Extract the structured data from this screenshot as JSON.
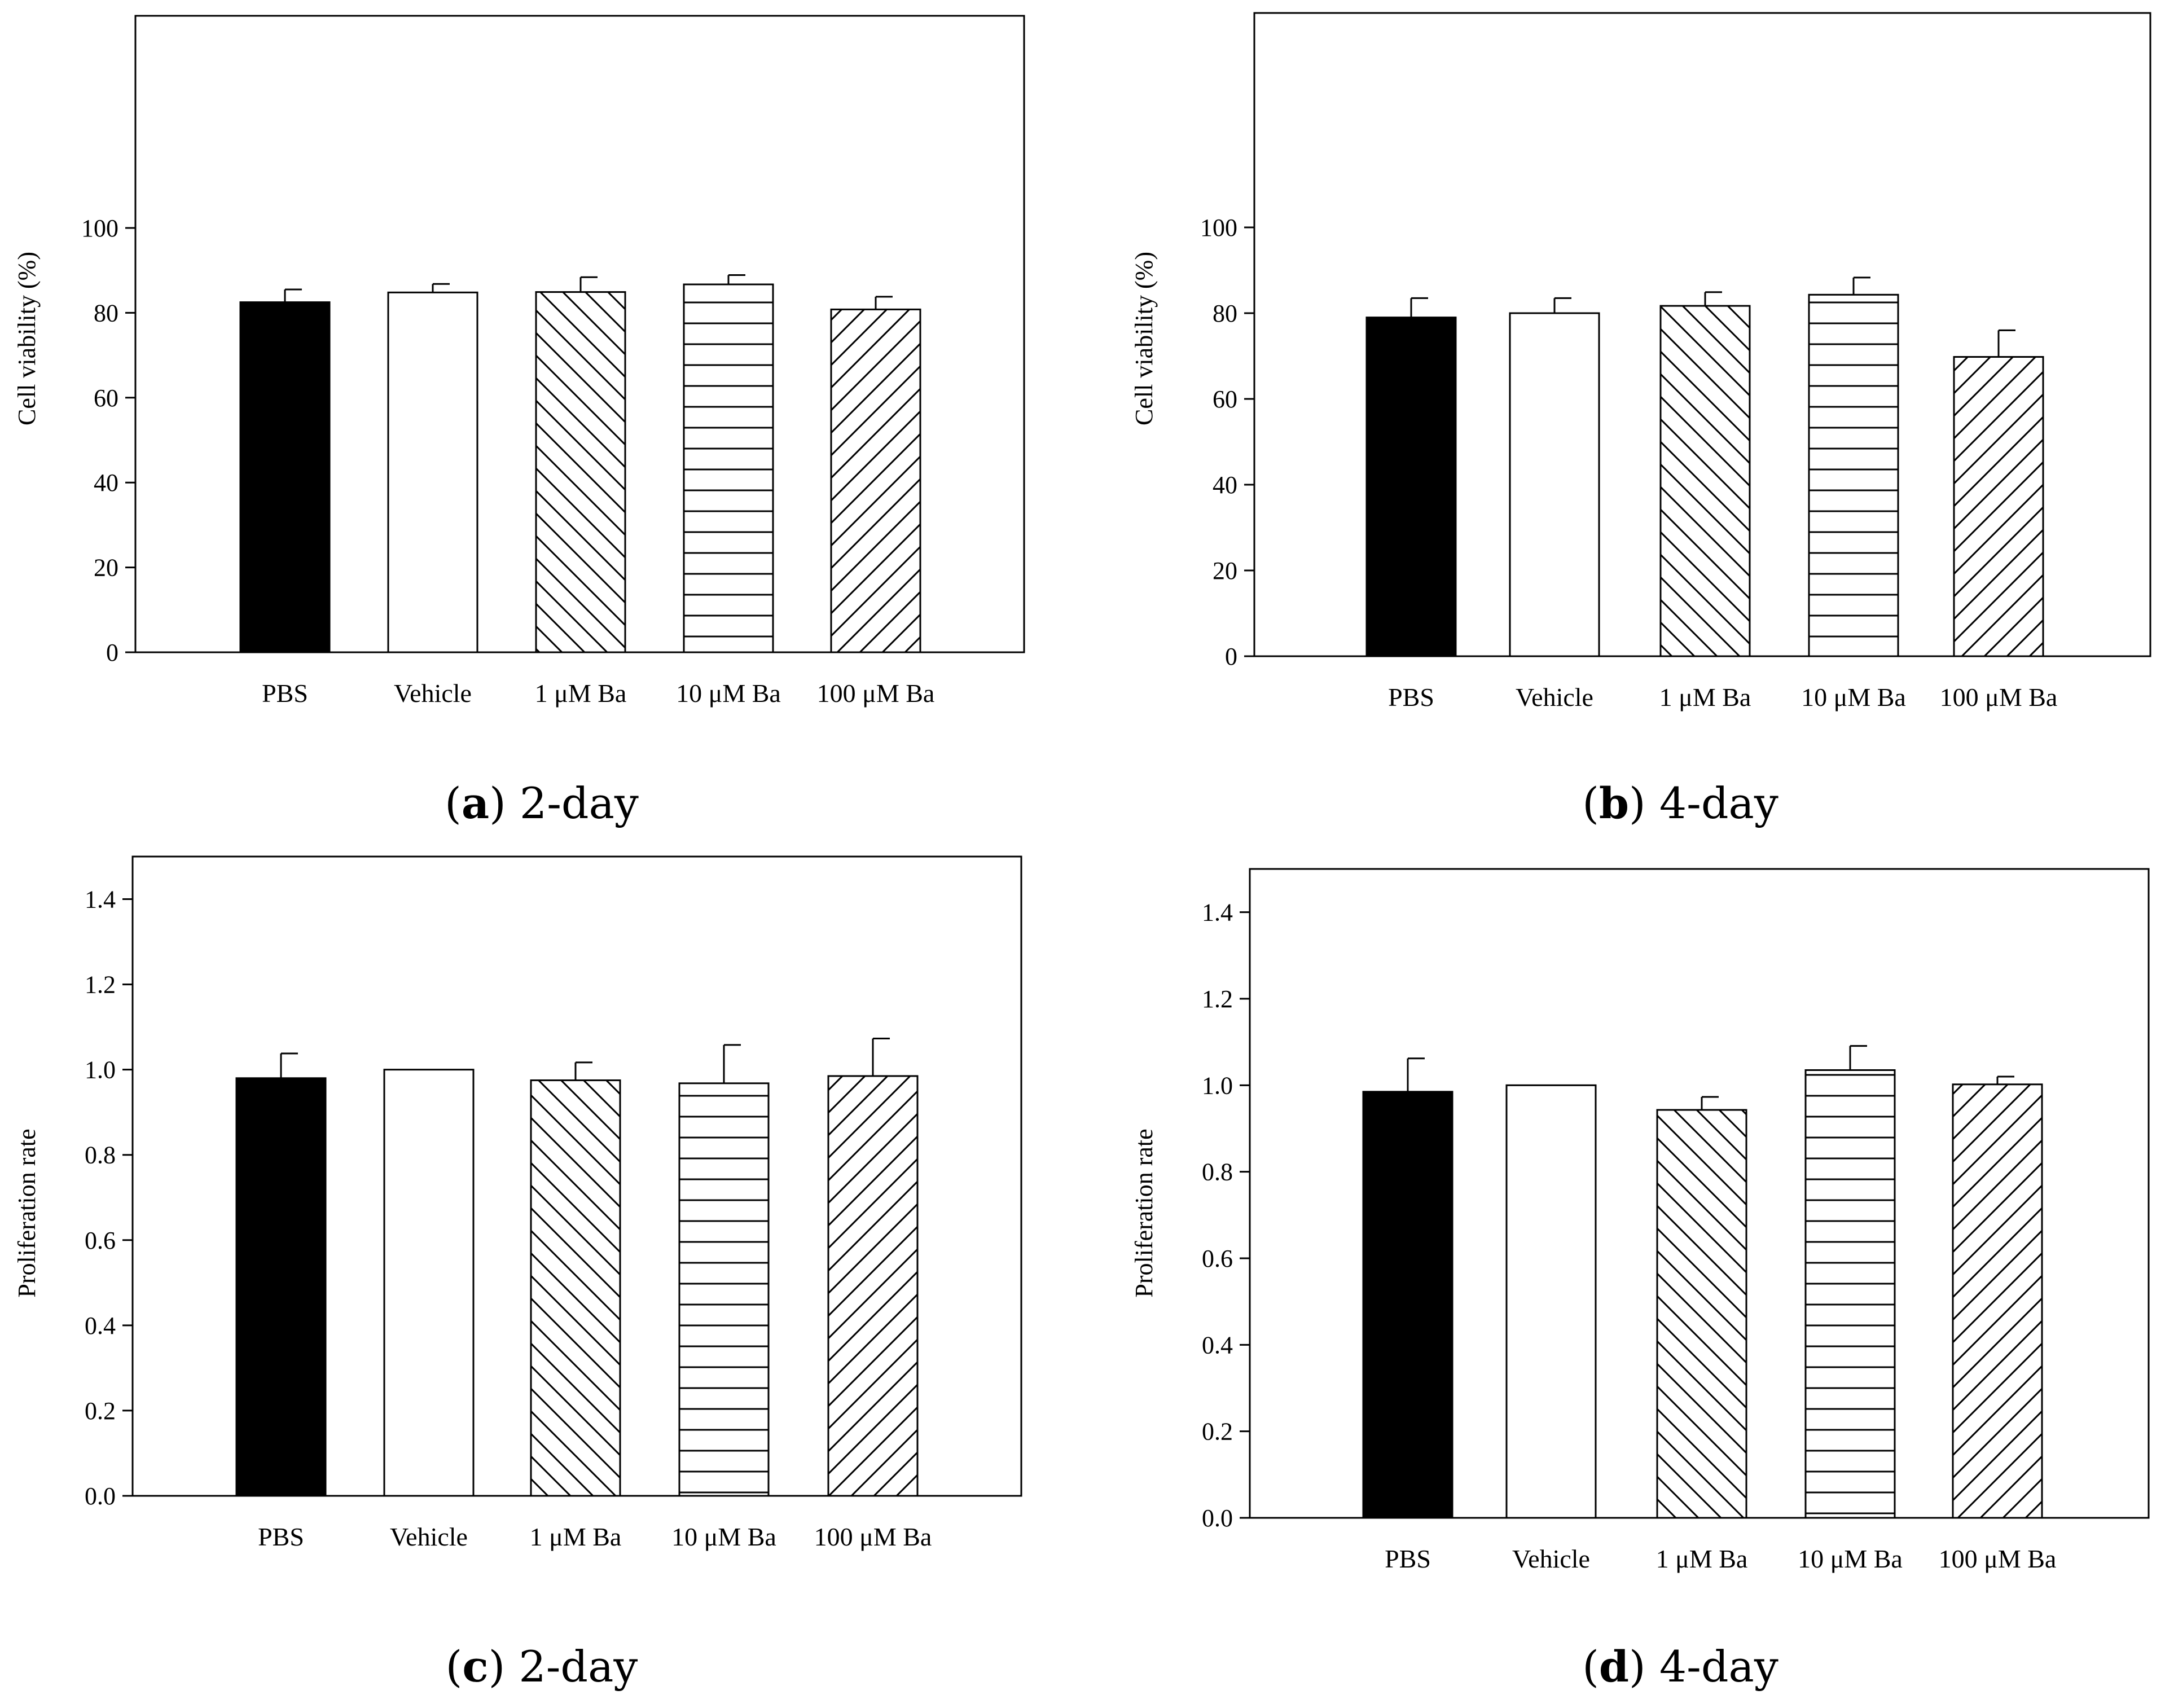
{
  "figure": {
    "panels": [
      {
        "caption": {
          "open": "(",
          "letter": "a",
          "close": ") 2-day"
        },
        "chart_data": {
          "type": "bar",
          "title": "",
          "xlabel": "",
          "ylabel": "Cell viability (%)",
          "categories": [
            "PBS",
            "Vehicle",
            "1 μM Ba",
            "10 μM Ba",
            "100 μM Ba"
          ],
          "values": [
            82.5,
            84.8,
            84.9,
            86.7,
            80.8
          ],
          "errors": [
            3.0,
            2.0,
            3.5,
            2.2,
            3.0
          ],
          "fills": [
            "solid",
            "empty",
            "diagonal-back",
            "horizontal",
            "diagonal-forward"
          ],
          "ylim": [
            0,
            150
          ],
          "yticks": [
            0,
            20,
            40,
            60,
            80,
            100
          ],
          "ytick_labels": [
            "0",
            "20",
            "40",
            "60",
            "80",
            "100"
          ]
        }
      },
      {
        "caption": {
          "open": "(",
          "letter": "b",
          "close": ") 4-day"
        },
        "chart_data": {
          "type": "bar",
          "title": "",
          "xlabel": "",
          "ylabel": "Cell viability (%)",
          "categories": [
            "PBS",
            "Vehicle",
            "1 μM Ba",
            "10 μM Ba",
            "100 μM Ba"
          ],
          "values": [
            79.0,
            80.0,
            81.7,
            84.3,
            69.8
          ],
          "errors": [
            4.5,
            3.5,
            3.2,
            4.0,
            6.2
          ],
          "fills": [
            "solid",
            "empty",
            "diagonal-back",
            "horizontal",
            "diagonal-forward"
          ],
          "ylim": [
            0,
            150
          ],
          "yticks": [
            0,
            20,
            40,
            60,
            80,
            100
          ],
          "ytick_labels": [
            "0",
            "20",
            "40",
            "60",
            "80",
            "100"
          ]
        }
      },
      {
        "caption": {
          "open": "(",
          "letter": "c",
          "close": ") 2-day"
        },
        "chart_data": {
          "type": "bar",
          "title": "",
          "xlabel": "",
          "ylabel": "Proliferation rate",
          "categories": [
            "PBS",
            "Vehicle",
            "1 μM Ba",
            "10 μM Ba",
            "100 μM Ba"
          ],
          "values": [
            0.98,
            1.0,
            0.975,
            0.968,
            0.985
          ],
          "errors": [
            0.058,
            0.0,
            0.042,
            0.09,
            0.088
          ],
          "fills": [
            "solid",
            "empty",
            "diagonal-back",
            "horizontal",
            "diagonal-forward"
          ],
          "ylim": [
            0,
            1.5
          ],
          "yticks": [
            0,
            0.2,
            0.4,
            0.6,
            0.8,
            1.0,
            1.2,
            1.4
          ],
          "ytick_labels": [
            "0.0",
            "0.2",
            "0.4",
            "0.6",
            "0.8",
            "1.0",
            "1.2",
            "1.4"
          ]
        }
      },
      {
        "caption": {
          "open": "(",
          "letter": "d",
          "close": ") 4-day"
        },
        "chart_data": {
          "type": "bar",
          "title": "",
          "xlabel": "",
          "ylabel": "Proliferation rate",
          "categories": [
            "PBS",
            "Vehicle",
            "1 μM Ba",
            "10 μM Ba",
            "100 μM Ba"
          ],
          "values": [
            0.985,
            1.0,
            0.943,
            1.035,
            1.002
          ],
          "errors": [
            0.077,
            0.0,
            0.03,
            0.056,
            0.018
          ],
          "fills": [
            "solid",
            "empty",
            "diagonal-back",
            "horizontal",
            "diagonal-forward"
          ],
          "ylim": [
            0,
            1.5
          ],
          "yticks": [
            0,
            0.2,
            0.4,
            0.6,
            0.8,
            1.0,
            1.2,
            1.4
          ],
          "ytick_labels": [
            "0.0",
            "0.2",
            "0.4",
            "0.6",
            "0.8",
            "1.0",
            "1.2",
            "1.4"
          ]
        }
      }
    ]
  }
}
